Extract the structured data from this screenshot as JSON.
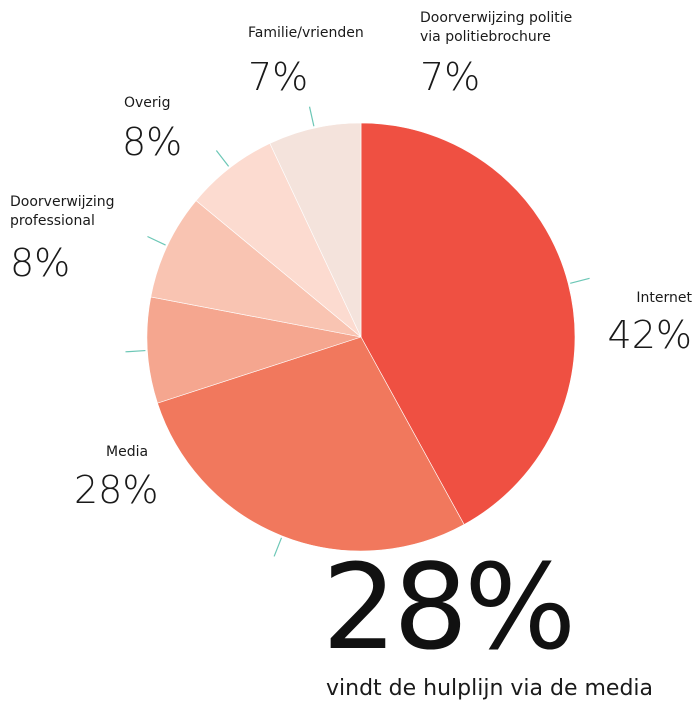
{
  "chart_data": {
    "type": "pie",
    "slices": [
      {
        "label": "Internet",
        "value": 42,
        "display": "42%",
        "color": "#ef5042"
      },
      {
        "label": "Media",
        "value": 28,
        "display": "28%",
        "color": "#f1785d"
      },
      {
        "label": "Doorverwijzing professional",
        "display": "8%",
        "value": 8,
        "color": "#f5a68f"
      },
      {
        "label": "Overig",
        "value": 8,
        "display": "8%",
        "color": "#f9c4b2"
      },
      {
        "label": "Familie/vrienden",
        "value": 7,
        "display": "7%",
        "color": "#fcdbd0"
      },
      {
        "label": "Doorverwijzing politie via politiebrochure",
        "value": 7,
        "display": "7%",
        "color": "#f4e3dc"
      }
    ],
    "leader_color": "#6cc7b6"
  },
  "headline": {
    "value": "28%",
    "caption": "vindt de hulplijn via de media"
  }
}
